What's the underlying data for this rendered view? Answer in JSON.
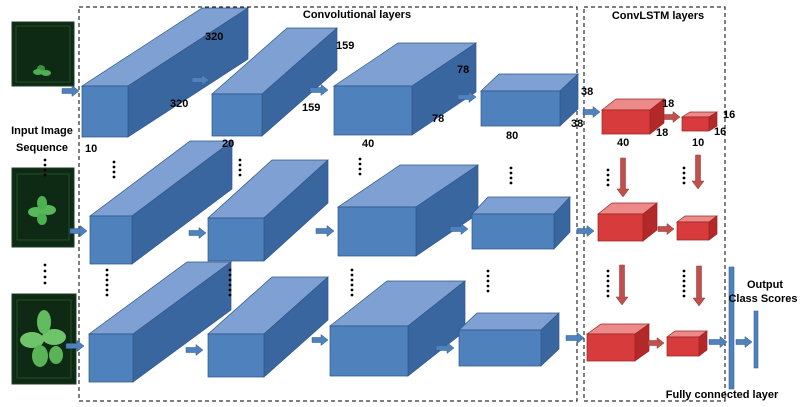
{
  "sections": {
    "conv_title": "Convolutional layers",
    "convlstm_title": "ConvLSTM layers",
    "input_label_line1": "Input Image",
    "input_label_line2": "Sequence",
    "output_label_line1": "Output",
    "output_label_line2": "Class Scores",
    "fc_label": "Fully connected layer"
  },
  "dimensions": {
    "conv1": {
      "height": "320",
      "depth": "320",
      "width": "10"
    },
    "conv2": {
      "height": "159",
      "depth": "159",
      "width": "20"
    },
    "conv3": {
      "height": "78",
      "depth": "78",
      "width": "40"
    },
    "conv4": {
      "height": "38",
      "depth": "38",
      "width": "80"
    },
    "lstm1": {
      "height": "18",
      "depth": "18",
      "width": "40"
    },
    "lstm2": {
      "height": "16",
      "depth": "16",
      "width": "10"
    }
  },
  "colors": {
    "conv_front": "#4f81bd",
    "conv_top": "#7ea0d3",
    "conv_side": "#3a66a0",
    "lstm_front": "#d83b3b",
    "lstm_top": "#ec8a8a",
    "lstm_side": "#b32828",
    "arrow_blue": "#4f81bd",
    "arrow_red": "#c0504d",
    "plant_bg": "#0f2a14",
    "plant_leaf": "#4caf50"
  }
}
